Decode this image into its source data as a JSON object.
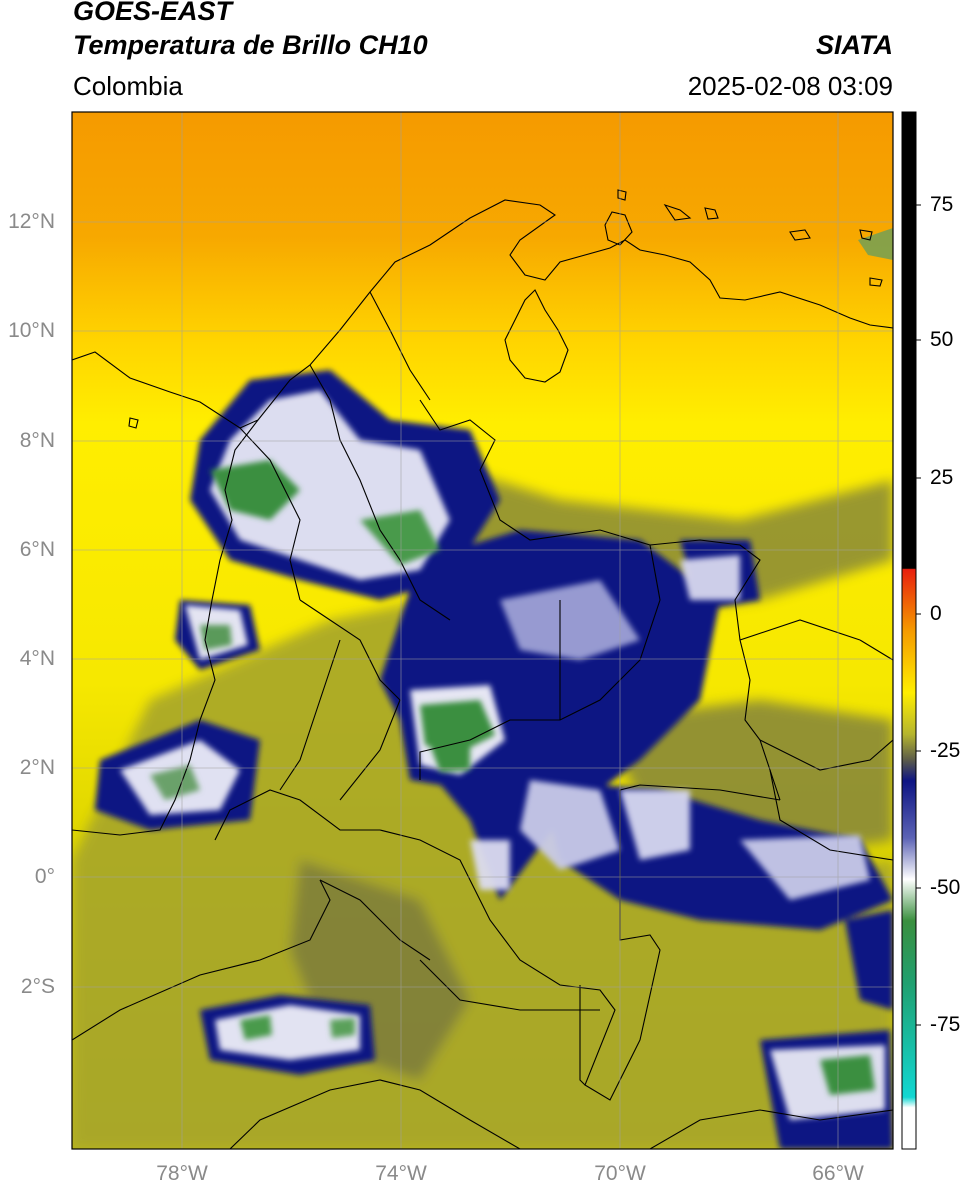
{
  "header": {
    "satellite": "GOES-EAST",
    "product": "Temperatura de Brillo CH10",
    "organization": "SIATA",
    "region": "Colombia",
    "timestamp": "2025-02-08 03:09"
  },
  "map": {
    "lat_labels": [
      "12°N",
      "10°N",
      "8°N",
      "6°N",
      "4°N",
      "2°N",
      "0°",
      "2°S"
    ],
    "lat_values": [
      12,
      10,
      8,
      6,
      4,
      2,
      0,
      -2
    ],
    "lon_labels": [
      "78°W",
      "74°W",
      "70°W",
      "66°W"
    ],
    "lon_values": [
      -78,
      -74,
      -70,
      -66
    ],
    "extent": {
      "lon_min": -80,
      "lon_max": -65,
      "lat_min": -5,
      "lat_max": 14
    },
    "gridlines": true
  },
  "colorbar": {
    "tick_labels": [
      "75",
      "50",
      "25",
      "0",
      "-25",
      "-50",
      "-75"
    ],
    "tick_values": [
      75,
      50,
      25,
      0,
      -25,
      -50,
      -75
    ],
    "vmin": -96,
    "vmax": 90,
    "palette": {
      "black": "#000000",
      "red": "#e81f0e",
      "orange": "#f5a000",
      "yellow": "#ffee00",
      "olive": "#9ea12a",
      "navy": "#0d1483",
      "white": "#ffffff",
      "green": "#3a8f3f",
      "cyan": "#12d7d2"
    }
  }
}
